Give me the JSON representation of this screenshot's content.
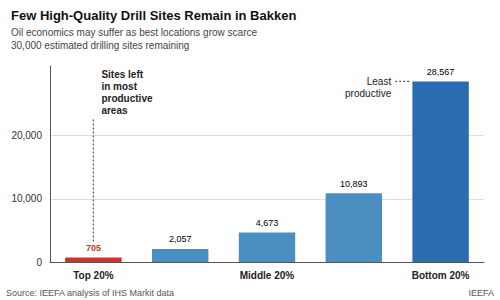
{
  "chart_data": {
    "type": "bar",
    "title": "Few High-Quality Drill Sites Remain in Bakken",
    "subtitle": [
      "Oil economics may suffer as best locations grow scarce",
      "30,000 estimated drilling sites remaining"
    ],
    "source": [
      "Source: IEEFA analysis of IHS Markit data",
      "IEEFA"
    ],
    "annotations": [
      "Sites left\nin most\nproductive\nareas",
      "Least\nproductive"
    ],
    "categories": [
      "Top 20%",
      null,
      "Middle 20%",
      null,
      "Bottom 20%"
    ],
    "values": [
      705,
      2057,
      4673,
      10893,
      28567
    ],
    "value_labels": [
      "705",
      "2,057",
      "4,673",
      "10,893",
      "28,567"
    ],
    "data_labels": true,
    "colors": [
      "#d0312d",
      "#4a8fc0",
      "#4a8fc0",
      "#4a8fc0",
      "#2b6cb0"
    ],
    "ylim": [
      0,
      31000
    ],
    "yticks": [
      0,
      {
        "value": 10000,
        "label": "10,000"
      },
      {
        "value": 20000,
        "label": "20,000"
      }
    ],
    "grid": true
  }
}
